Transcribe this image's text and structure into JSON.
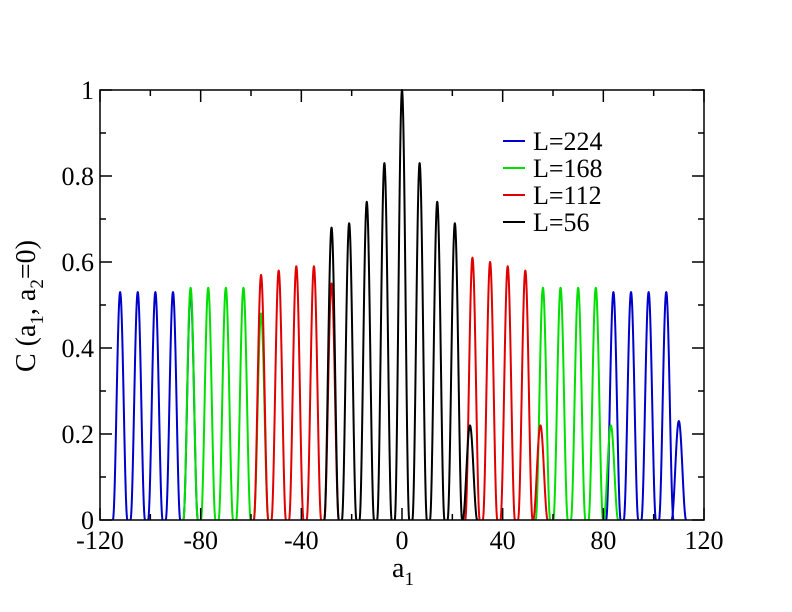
{
  "chart_data": {
    "type": "line",
    "xlabel": {
      "main": "a",
      "sub": "1"
    },
    "ylabel": {
      "p1": "C (a",
      "s1": "1",
      "p2": ", a",
      "s2": "2",
      "p3": "=0)"
    },
    "xlim": [
      -120,
      120
    ],
    "ylim": [
      0,
      1
    ],
    "xticks": [
      -120,
      -80,
      -40,
      0,
      40,
      80,
      120
    ],
    "yticks": [
      0,
      0.2,
      0.4,
      0.6,
      0.8,
      1
    ],
    "xtick_labels": [
      "-120",
      "-80",
      "-40",
      "0",
      "40",
      "80",
      "120"
    ],
    "ytick_labels": [
      "0",
      "0.2",
      "0.4",
      "0.6",
      "0.8",
      "1"
    ],
    "grid": false,
    "legend_position": "top-right",
    "series": [
      {
        "name": "L=224",
        "color": "#0000cc",
        "peaks": [
          [
            -112,
            0.53
          ],
          [
            -105,
            0.53
          ],
          [
            -98,
            0.53
          ],
          [
            -91,
            0.53
          ],
          [
            -84,
            0.53
          ],
          [
            84,
            0.53
          ],
          [
            91,
            0.53
          ],
          [
            98,
            0.53
          ],
          [
            105,
            0.53
          ],
          [
            110,
            0.23
          ]
        ]
      },
      {
        "name": "L=168",
        "color": "#00e000",
        "peaks": [
          [
            -84,
            0.54
          ],
          [
            -77,
            0.54
          ],
          [
            -70,
            0.54
          ],
          [
            -63,
            0.54
          ],
          [
            -56,
            0.48
          ],
          [
            56,
            0.54
          ],
          [
            63,
            0.54
          ],
          [
            70,
            0.54
          ],
          [
            77,
            0.54
          ],
          [
            83,
            0.22
          ]
        ]
      },
      {
        "name": "L=112",
        "color": "#e00000",
        "peaks": [
          [
            -56,
            0.57
          ],
          [
            -49,
            0.58
          ],
          [
            -42,
            0.59
          ],
          [
            -35,
            0.59
          ],
          [
            -28,
            0.55
          ],
          [
            28,
            0.61
          ],
          [
            35,
            0.6
          ],
          [
            42,
            0.59
          ],
          [
            49,
            0.58
          ],
          [
            55,
            0.22
          ]
        ]
      },
      {
        "name": "L=56",
        "color": "#000000",
        "peaks": [
          [
            -28,
            0.68
          ],
          [
            -21,
            0.69
          ],
          [
            -14,
            0.74
          ],
          [
            -7,
            0.83
          ],
          [
            0,
            1.0
          ],
          [
            7,
            0.83
          ],
          [
            14,
            0.74
          ],
          [
            21,
            0.69
          ],
          [
            27,
            0.22
          ]
        ]
      }
    ]
  }
}
